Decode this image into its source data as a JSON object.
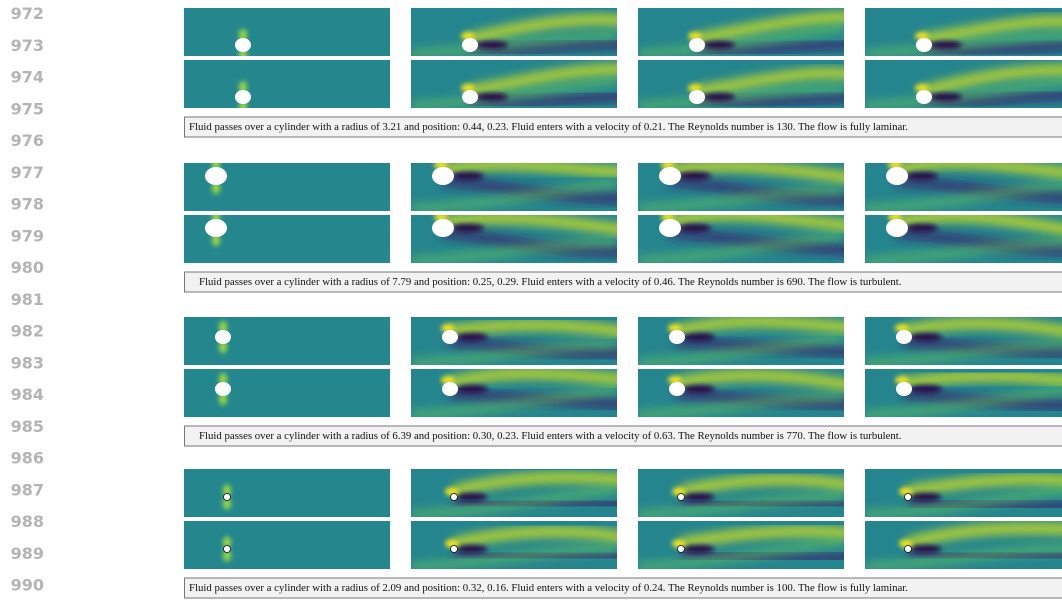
{
  "line_numbers": [
    "972",
    "973",
    "974",
    "975",
    "976",
    "977",
    "978",
    "979",
    "980",
    "981",
    "982",
    "983",
    "984",
    "985",
    "986",
    "987",
    "988",
    "989",
    "990"
  ],
  "figures": [
    {
      "caption": "Fluid passes over a cylinder with a radius of 3.21 and position: 0.44, 0.23. Fluid enters with a velocity of 0.21. The Reynolds number is 130. The flow is fully laminar."
    },
    {
      "caption": "Fluid passes over a cylinder with a radius of 7.79 and position: 0.25, 0.29. Fluid enters with a velocity of 0.46. The Reynolds number is 690. The flow is turbulent."
    },
    {
      "caption": "Fluid passes over a cylinder with a radius of 6.39 and position: 0.30, 0.23. Fluid enters with a velocity of 0.63. The Reynolds number is 770. The flow is turbulent."
    },
    {
      "caption": "Fluid passes over a cylinder with a radius of 2.09 and position: 0.32, 0.16. Fluid enters with a velocity of 0.24. The Reynolds number is 100. The flow is fully laminar."
    }
  ]
}
